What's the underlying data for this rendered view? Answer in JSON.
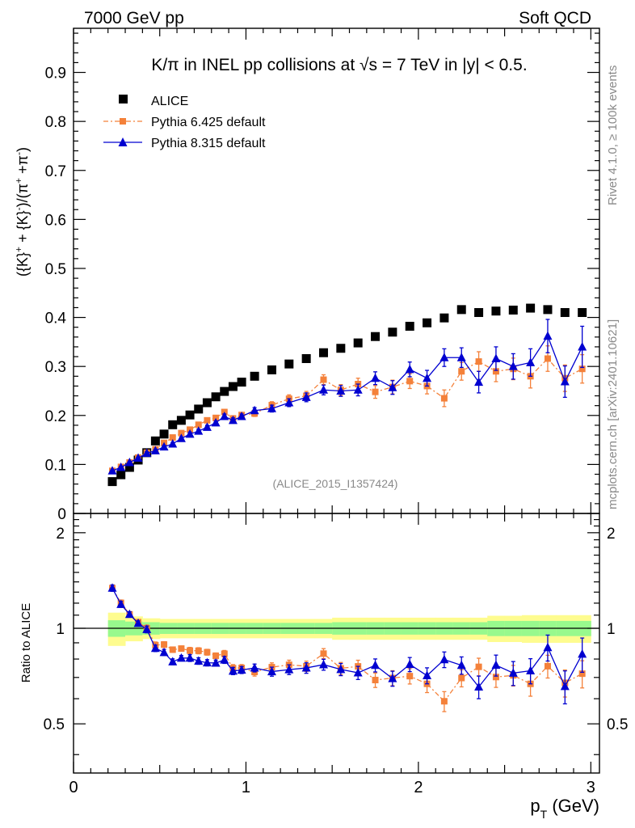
{
  "header": {
    "left": "7000 GeV pp",
    "right": "Soft QCD"
  },
  "side": {
    "top": "Rivet 4.1.0, ≥ 100k events",
    "bottom": "mcplots.cern.ch [arXiv:2401.10621]"
  },
  "colors": {
    "alice": "#000000",
    "pythia6": "#f4813a",
    "pythia8": "#0000d0",
    "band_inner": "#98f98d",
    "band_outer": "#fefc8f"
  },
  "chart_data": {
    "type": "scatter",
    "title": "K/π in INEL pp collisions at √s =  7 TeV in |y| < 0.5.",
    "watermark": "(ALICE_2015_I1357424)",
    "xlabel": "p_T (GeV)",
    "ylabel": "({K}⁺ + {K}⁻)/(π⁺ + π⁻)",
    "ratio_ylabel": "Ratio to ALICE",
    "xlim": [
      0,
      3.05
    ],
    "ylim": [
      0,
      0.99
    ],
    "ratio_ylim": [
      0.35,
      2.3
    ],
    "x_ticks": [
      "0",
      "1",
      "2",
      "3"
    ],
    "y_ticks": [
      "0",
      "0.1",
      "0.2",
      "0.3",
      "0.4",
      "0.5",
      "0.6",
      "0.7",
      "0.8",
      "0.9"
    ],
    "ratio_ticks": [
      "0.5",
      "1",
      "2"
    ],
    "legend": [
      "ALICE",
      "Pythia 6.425 default",
      "Pythia 8.315 default"
    ],
    "x": [
      0.225,
      0.275,
      0.325,
      0.375,
      0.425,
      0.475,
      0.525,
      0.575,
      0.625,
      0.675,
      0.725,
      0.775,
      0.825,
      0.875,
      0.925,
      0.975,
      1.05,
      1.15,
      1.25,
      1.35,
      1.45,
      1.55,
      1.65,
      1.75,
      1.85,
      1.95,
      2.05,
      2.15,
      2.25,
      2.35,
      2.45,
      2.55,
      2.65,
      2.75,
      2.85,
      2.95
    ],
    "series": [
      {
        "name": "ALICE",
        "values": [
          0.065,
          0.079,
          0.094,
          0.109,
          0.124,
          0.148,
          0.162,
          0.181,
          0.19,
          0.201,
          0.213,
          0.226,
          0.238,
          0.249,
          0.259,
          0.268,
          0.28,
          0.293,
          0.305,
          0.316,
          0.328,
          0.337,
          0.348,
          0.361,
          0.37,
          0.382,
          0.389,
          0.399,
          0.416,
          0.41,
          0.413,
          0.415,
          0.419,
          0.416,
          0.41,
          0.41
        ]
      },
      {
        "name": "Pythia 6.425 default",
        "values": [
          0.087,
          0.095,
          0.104,
          0.114,
          0.124,
          0.131,
          0.144,
          0.155,
          0.164,
          0.171,
          0.181,
          0.19,
          0.195,
          0.207,
          0.194,
          0.201,
          0.204,
          0.221,
          0.234,
          0.24,
          0.273,
          0.252,
          0.264,
          0.248,
          0.258,
          0.27,
          0.26,
          0.235,
          0.29,
          0.31,
          0.29,
          0.295,
          0.28,
          0.316,
          0.276,
          0.295
        ]
      },
      {
        "name": "Pythia 8.315 default",
        "values": [
          0.087,
          0.094,
          0.104,
          0.113,
          0.123,
          0.128,
          0.136,
          0.142,
          0.153,
          0.162,
          0.168,
          0.176,
          0.185,
          0.198,
          0.19,
          0.198,
          0.21,
          0.214,
          0.226,
          0.237,
          0.252,
          0.25,
          0.252,
          0.276,
          0.257,
          0.294,
          0.276,
          0.318,
          0.318,
          0.268,
          0.316,
          0.3,
          0.308,
          0.362,
          0.269,
          0.34
        ]
      }
    ],
    "errors": {
      "Pythia 6.425 default": [
        0.002,
        0.002,
        0.002,
        0.002,
        0.003,
        0.003,
        0.003,
        0.003,
        0.003,
        0.004,
        0.004,
        0.004,
        0.004,
        0.005,
        0.005,
        0.005,
        0.006,
        0.007,
        0.008,
        0.009,
        0.01,
        0.011,
        0.012,
        0.013,
        0.014,
        0.015,
        0.016,
        0.017,
        0.018,
        0.02,
        0.021,
        0.022,
        0.024,
        0.026,
        0.027,
        0.029
      ],
      "Pythia 8.315 default": [
        0.002,
        0.002,
        0.002,
        0.002,
        0.003,
        0.003,
        0.003,
        0.003,
        0.003,
        0.004,
        0.004,
        0.004,
        0.004,
        0.005,
        0.005,
        0.005,
        0.006,
        0.007,
        0.008,
        0.009,
        0.01,
        0.011,
        0.012,
        0.013,
        0.014,
        0.015,
        0.016,
        0.018,
        0.02,
        0.022,
        0.024,
        0.026,
        0.028,
        0.034,
        0.032,
        0.042
      ]
    },
    "ratio_band": {
      "edges": [
        0.2,
        0.3,
        0.4,
        0.5,
        0.6,
        0.7,
        0.8,
        0.9,
        1.0,
        1.1,
        1.2,
        1.3,
        1.4,
        1.5,
        1.6,
        1.7,
        1.8,
        1.9,
        2.0,
        2.1,
        2.2,
        2.3,
        2.4,
        2.5,
        2.6,
        2.7,
        2.8,
        2.9,
        3.0
      ],
      "inner": [
        0.06,
        0.05,
        0.045,
        0.04,
        0.04,
        0.04,
        0.04,
        0.04,
        0.04,
        0.04,
        0.04,
        0.04,
        0.04,
        0.045,
        0.045,
        0.045,
        0.045,
        0.045,
        0.045,
        0.045,
        0.045,
        0.045,
        0.055,
        0.055,
        0.055,
        0.055,
        0.055,
        0.055
      ],
      "outer": [
        0.12,
        0.09,
        0.075,
        0.07,
        0.07,
        0.07,
        0.07,
        0.07,
        0.07,
        0.07,
        0.07,
        0.07,
        0.07,
        0.08,
        0.08,
        0.08,
        0.08,
        0.08,
        0.08,
        0.08,
        0.08,
        0.08,
        0.095,
        0.095,
        0.1,
        0.1,
        0.1,
        0.1
      ]
    }
  }
}
